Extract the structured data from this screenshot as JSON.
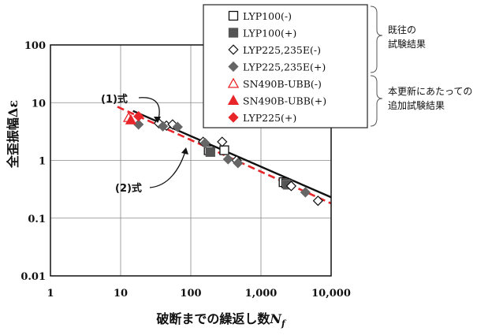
{
  "chart_data": {
    "type": "scatter",
    "title": "",
    "xlabel": "破断までの繰返し数",
    "xlabel_var": "N",
    "xlabel_sub": "f",
    "ylabel": "全歪振幅Δε",
    "xscale": "log",
    "yscale": "log",
    "xlim": [
      1,
      10000
    ],
    "ylim": [
      0.01,
      100
    ],
    "grid": true,
    "x_ticks": [
      "1",
      "10",
      "100",
      "1,000",
      "10,000"
    ],
    "y_ticks": [
      "100",
      "10",
      "1",
      "0.1",
      "0.01"
    ],
    "x_tick_values": [
      1,
      10,
      100,
      1000,
      10000
    ],
    "y_tick_values": [
      100,
      10,
      1,
      0.1,
      0.01
    ],
    "legend_position": "top-right",
    "series": [
      {
        "name": "LYP100(-)",
        "marker": "square-open",
        "color": "#111111",
        "points": [
          [
            180,
            1.5
          ],
          [
            300,
            1.5
          ],
          [
            2100,
            0.42
          ],
          [
            2300,
            0.4
          ]
        ]
      },
      {
        "name": "LYP100(+)",
        "marker": "square-filled",
        "color": "#555555",
        "points": [
          [
            190,
            1.4
          ],
          [
            2400,
            0.38
          ]
        ]
      },
      {
        "name": "LYP225,235E(-)",
        "marker": "diamond-open",
        "color": "#111111",
        "points": [
          [
            35,
            4.4
          ],
          [
            45,
            4.0
          ],
          [
            55,
            4.2
          ],
          [
            150,
            2.1
          ],
          [
            280,
            2.1
          ],
          [
            450,
            1.0
          ],
          [
            2700,
            0.36
          ],
          [
            6500,
            0.2
          ]
        ]
      },
      {
        "name": "LYP225,235E(+)",
        "marker": "diamond-filled",
        "color": "#666666",
        "points": [
          [
            18,
            4.2
          ],
          [
            40,
            3.9
          ],
          [
            65,
            3.8
          ],
          [
            160,
            2.0
          ],
          [
            340,
            1.05
          ],
          [
            470,
            0.9
          ],
          [
            4300,
            0.28
          ]
        ]
      },
      {
        "name": "SN490B-UBB(-)",
        "marker": "triangle-open",
        "color": "#e8262a",
        "points": [
          [
            13,
            5.5
          ]
        ]
      },
      {
        "name": "SN490B-UBB(+)",
        "marker": "triangle-filled",
        "color": "#e8262a",
        "points": [
          [
            14,
            5.0
          ]
        ]
      },
      {
        "name": "LYP225(+)",
        "marker": "diamond-filled",
        "color": "#e8262a",
        "points": [
          [
            18,
            5.8
          ]
        ]
      }
    ],
    "fits": [
      {
        "label": "(1)式",
        "style": "solid",
        "color": "#111111",
        "from": [
          15,
          7.2
        ],
        "to": [
          10000,
          0.23
        ]
      },
      {
        "label": "(2)式",
        "style": "dashed",
        "color": "#e8262a",
        "from": [
          9,
          8.5
        ],
        "to": [
          10000,
          0.18
        ]
      }
    ],
    "annotations": {
      "group1": [
        "既往の",
        "試験結果"
      ],
      "group2": [
        "本更新にあたっての",
        "追加試験結果"
      ]
    }
  }
}
